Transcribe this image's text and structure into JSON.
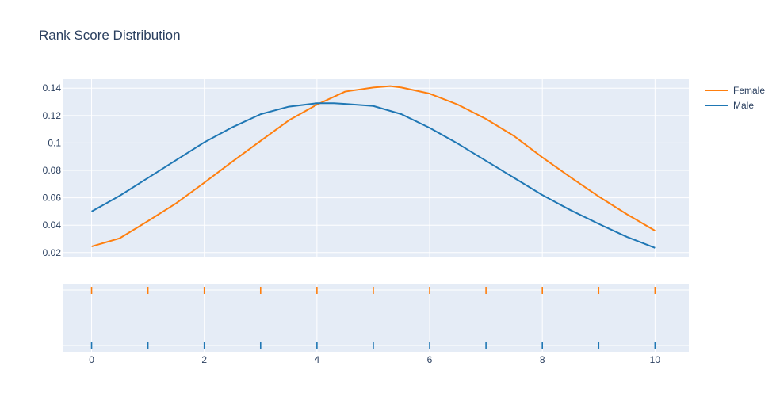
{
  "chart_data": {
    "type": "line",
    "title": "Rank Score Distribution",
    "xlabel": "",
    "ylabel": "",
    "xlim": [
      -0.5,
      10.6
    ],
    "ylim": [
      0.017,
      0.1465
    ],
    "xticks": [
      0,
      2,
      4,
      6,
      8,
      10
    ],
    "yticks": [
      0.02,
      0.04,
      0.06,
      0.08,
      0.1,
      0.12,
      0.14
    ],
    "ytick_labels": [
      "0.02",
      "0.04",
      "0.06",
      "0.08",
      "0.1",
      "0.12",
      "0.14"
    ],
    "grid": true,
    "legend_position": "top-right",
    "series": [
      {
        "name": "Female",
        "color": "#ff7f0e",
        "x": [
          0,
          0.5,
          1,
          1.5,
          2,
          2.5,
          3,
          3.5,
          4,
          4.5,
          5,
          5.3,
          5.5,
          6,
          6.5,
          7,
          7.5,
          8,
          8.5,
          9,
          9.5,
          10
        ],
        "y": [
          0.0245,
          0.0305,
          0.043,
          0.056,
          0.071,
          0.0865,
          0.1015,
          0.1165,
          0.128,
          0.1375,
          0.1405,
          0.1415,
          0.1405,
          0.136,
          0.128,
          0.1175,
          0.105,
          0.0895,
          0.075,
          0.061,
          0.048,
          0.036
        ]
      },
      {
        "name": "Male",
        "color": "#1f77b4",
        "x": [
          0,
          0.5,
          1,
          1.5,
          2,
          2.5,
          3,
          3.5,
          4,
          4.3,
          4.5,
          5,
          5.5,
          6,
          6.5,
          7,
          7.5,
          8,
          8.5,
          9,
          9.5,
          10
        ],
        "y": [
          0.05,
          0.0615,
          0.0745,
          0.0875,
          0.1005,
          0.1115,
          0.121,
          0.1265,
          0.129,
          0.129,
          0.1285,
          0.127,
          0.121,
          0.111,
          0.0995,
          0.087,
          0.0745,
          0.062,
          0.051,
          0.041,
          0.0315,
          0.0235
        ]
      }
    ],
    "rug": {
      "female_x": [
        0,
        1,
        2,
        3,
        4,
        5,
        6,
        7,
        8,
        9,
        10
      ],
      "male_x": [
        0,
        1,
        2,
        3,
        4,
        5,
        6,
        7,
        8,
        9,
        10
      ]
    }
  },
  "style": {
    "plot_bg": "#e5ecf6",
    "grid_color": "#ffffff",
    "text_color": "#2a3f5f"
  }
}
